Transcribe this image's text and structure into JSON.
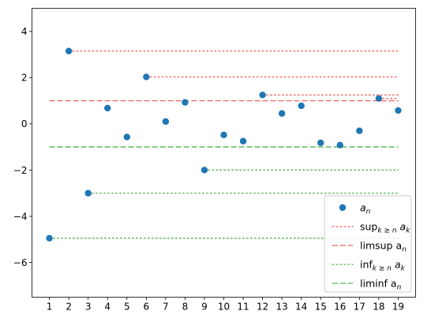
{
  "chart_data": {
    "type": "scatter",
    "title": "",
    "xlabel": "",
    "ylabel": "",
    "xlim": [
      0.1,
      19.9
    ],
    "ylim": [
      -7.5,
      5.0
    ],
    "x_ticks": [
      1,
      2,
      3,
      4,
      5,
      6,
      7,
      8,
      9,
      10,
      11,
      12,
      13,
      14,
      15,
      16,
      17,
      18,
      19
    ],
    "y_ticks": [
      -6,
      -4,
      -2,
      0,
      2,
      4
    ],
    "grid": false,
    "legend_position": "lower-right",
    "series": [
      {
        "name": "a_n",
        "kind": "points",
        "color": "#1f77b4",
        "x": [
          1,
          2,
          3,
          4,
          5,
          6,
          7,
          8,
          9,
          10,
          11,
          12,
          13,
          14,
          15,
          16,
          17,
          18,
          19
        ],
        "y": [
          -4.95,
          3.15,
          -3.0,
          0.68,
          -0.57,
          2.03,
          0.1,
          0.93,
          -2.0,
          -0.48,
          -0.75,
          1.25,
          0.45,
          0.78,
          -0.82,
          -0.92,
          -0.3,
          1.1,
          0.58
        ]
      },
      {
        "name": "sup_{k≥n} a_k",
        "kind": "hsegments-dotted",
        "color": "#f07878",
        "segments": [
          {
            "x_start": 2,
            "x_end": 19,
            "y": 3.15
          },
          {
            "x_start": 6,
            "x_end": 19,
            "y": 2.03
          },
          {
            "x_start": 12,
            "x_end": 19,
            "y": 1.25
          },
          {
            "x_start": 18,
            "x_end": 19,
            "y": 1.1
          }
        ]
      },
      {
        "name": "limsup a_n",
        "kind": "hline-dashed",
        "color": "#f07878",
        "x_start": 1,
        "x_end": 19,
        "y": 1.0
      },
      {
        "name": "inf_{k≥n} a_k",
        "kind": "hsegments-dotted",
        "color": "#6cbd6c",
        "segments": [
          {
            "x_start": 1,
            "x_end": 19,
            "y": -4.95
          },
          {
            "x_start": 3,
            "x_end": 19,
            "y": -3.0
          },
          {
            "x_start": 9,
            "x_end": 19,
            "y": -2.0
          }
        ]
      },
      {
        "name": "liminf a_n",
        "kind": "hline-dashed",
        "color": "#6cbd6c",
        "x_start": 1,
        "x_end": 19,
        "y": -1.0
      }
    ],
    "legend": [
      {
        "key": "an",
        "base": "a",
        "sub": "n",
        "after": ""
      },
      {
        "key": "sup",
        "base": "sup",
        "sub": "k ≥ n",
        "after": " a",
        "after_sub": "k"
      },
      {
        "key": "limsup",
        "base": "limsup a",
        "sub": "n",
        "after": ""
      },
      {
        "key": "inf",
        "base": "inf",
        "sub": "k ≥ n",
        "after": " a",
        "after_sub": "k"
      },
      {
        "key": "liminf",
        "base": "liminf a",
        "sub": "n",
        "after": ""
      }
    ]
  }
}
